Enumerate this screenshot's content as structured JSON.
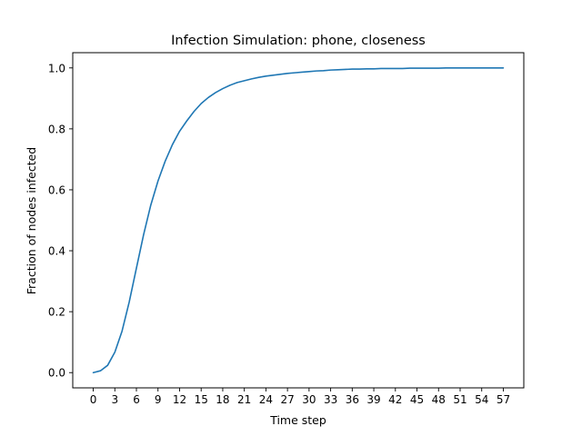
{
  "chart_data": {
    "type": "line",
    "title": "Infection Simulation: phone, closeness",
    "xlabel": "Time step",
    "ylabel": "Fraction of nodes infected",
    "xlim": [
      -2.85,
      59.85
    ],
    "ylim": [
      -0.05,
      1.05
    ],
    "xticks": [
      0,
      3,
      6,
      9,
      12,
      15,
      18,
      21,
      24,
      27,
      30,
      33,
      36,
      39,
      42,
      45,
      48,
      51,
      54,
      57
    ],
    "yticks": [
      0.0,
      0.2,
      0.4,
      0.6,
      0.8,
      1.0
    ],
    "ytick_labels": [
      "0.0",
      "0.2",
      "0.4",
      "0.6",
      "0.8",
      "1.0"
    ],
    "grid": false,
    "line_color": "#1f77b4",
    "series": [
      {
        "x": [
          0,
          1,
          2,
          3,
          4,
          5,
          6,
          7,
          8,
          9,
          10,
          11,
          12,
          13,
          14,
          15,
          16,
          17,
          18,
          19,
          20,
          21,
          22,
          23,
          24,
          25,
          26,
          27,
          28,
          29,
          30,
          31,
          32,
          33,
          34,
          35,
          36,
          37,
          38,
          39,
          40,
          41,
          42,
          43,
          44,
          45,
          46,
          47,
          48,
          49,
          50,
          51,
          52,
          53,
          54,
          55,
          56,
          57
        ],
        "values": [
          0.0,
          0.006,
          0.024,
          0.067,
          0.136,
          0.232,
          0.343,
          0.453,
          0.55,
          0.629,
          0.694,
          0.748,
          0.792,
          0.826,
          0.857,
          0.883,
          0.903,
          0.919,
          0.932,
          0.943,
          0.952,
          0.958,
          0.964,
          0.969,
          0.973,
          0.976,
          0.979,
          0.982,
          0.984,
          0.986,
          0.988,
          0.99,
          0.991,
          0.993,
          0.994,
          0.995,
          0.996,
          0.996,
          0.997,
          0.997,
          0.998,
          0.998,
          0.998,
          0.998,
          0.999,
          0.999,
          0.999,
          0.999,
          0.999,
          1.0,
          1.0,
          1.0,
          1.0,
          1.0,
          1.0,
          1.0,
          1.0,
          1.0
        ]
      }
    ]
  }
}
